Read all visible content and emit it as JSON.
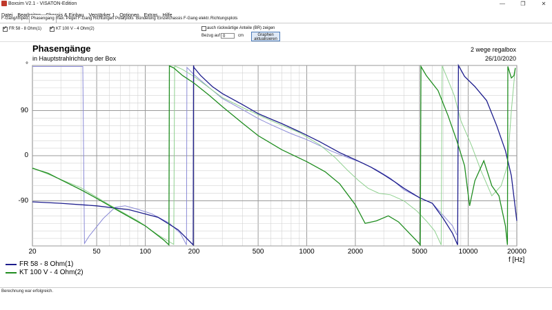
{
  "window": {
    "title": "Boxsim V2.1 - VISATON-Edition",
    "min": "—",
    "max": "❐",
    "close": "✕"
  },
  "menu": [
    "Datei",
    "Bearbeiten",
    "Chassis & Einbau",
    "Verstärker 1",
    "Optionen",
    "Extras",
    "Hilfe"
  ],
  "tabs": [
    "F-Gang/Imped.",
    "Phasengang",
    "max. Pegel",
    "F-Gang Richtungen",
    "Polarplots",
    "Bündelung",
    "Einzelchassis",
    "F-Gang elektr.",
    "Richtungsplots"
  ],
  "active_tab": "Phasengang",
  "toolbar": {
    "series1_label": "FR 58 - 8 Ohm(1)",
    "series2_label": "KT 100 V - 4 Ohm(2)",
    "rear_label": "auch rückwärtige Anteile (BR) zeigen",
    "bezug_label": "Bezug auf",
    "bezug_value": "0",
    "bezug_unit": "cm",
    "graph_btn_line1": "Graphen",
    "graph_btn_line2": "aktualisieren"
  },
  "plot": {
    "title": "Phasengänge",
    "subtitle": "in Hauptstrahlrichtung der Box",
    "right1": "2 wege regalbox",
    "right2": "26/10/2020"
  },
  "status": "Berechnung war erfolgreich.",
  "colors": {
    "blue": "#1c1c8c",
    "blue_light": "#8a8ad6",
    "green": "#1e8c1e",
    "green_light": "#8ed08e"
  },
  "chart_data": {
    "type": "line",
    "xscale": "log",
    "xlim": [
      20,
      20000
    ],
    "ylim": [
      -180,
      180
    ],
    "xlabel": "f [Hz]",
    "x_ticks": [
      20,
      50,
      100,
      200,
      500,
      1000,
      2000,
      5000,
      10000,
      20000
    ],
    "y_ticks": [
      {
        "value": 180,
        "label": "°"
      },
      {
        "value": 90,
        "label": "90"
      },
      {
        "value": 0,
        "label": "0"
      },
      {
        "value": -90,
        "label": "-90"
      }
    ],
    "grid": true,
    "legend_position": "bottom-left",
    "series": [
      {
        "name": "FR 58 - 8 Ohm(1)",
        "color": "#1c1c8c",
        "points": [
          [
            20,
            -92
          ],
          [
            30,
            -95
          ],
          [
            50,
            -100
          ],
          [
            80,
            -108
          ],
          [
            120,
            -123
          ],
          [
            160,
            -148
          ],
          [
            198,
            -178
          ],
          [
            199,
            180
          ],
          [
            200,
            176
          ],
          [
            220,
            160
          ],
          [
            260,
            138
          ],
          [
            300,
            124
          ],
          [
            400,
            102
          ],
          [
            500,
            84
          ],
          [
            600,
            73
          ],
          [
            700,
            64
          ],
          [
            900,
            48
          ],
          [
            1200,
            28
          ],
          [
            1600,
            6
          ],
          [
            2000,
            -8
          ],
          [
            2500,
            -23
          ],
          [
            3000,
            -38
          ],
          [
            3500,
            -52
          ],
          [
            4000,
            -65
          ],
          [
            5000,
            -84
          ],
          [
            6000,
            -95
          ],
          [
            7000,
            -125
          ],
          [
            8000,
            -155
          ],
          [
            8600,
            -178
          ],
          [
            8700,
            180
          ],
          [
            9500,
            158
          ],
          [
            11000,
            138
          ],
          [
            13000,
            110
          ],
          [
            15000,
            60
          ],
          [
            17000,
            10
          ],
          [
            18500,
            -40
          ],
          [
            20000,
            -130
          ]
        ]
      },
      {
        "name": "FR 58 - 8 Ohm(1)",
        "color": "#8a8ad6",
        "points": [
          [
            20,
            178
          ],
          [
            41,
            178
          ],
          [
            42,
            -175
          ],
          [
            45,
            -160
          ],
          [
            55,
            -125
          ],
          [
            65,
            -103
          ],
          [
            75,
            -100
          ],
          [
            90,
            -107
          ],
          [
            110,
            -116
          ],
          [
            140,
            -134
          ],
          [
            165,
            -155
          ],
          [
            180,
            -178
          ],
          [
            181,
            176
          ],
          [
            200,
            162
          ],
          [
            240,
            140
          ],
          [
            300,
            114
          ],
          [
            400,
            92
          ],
          [
            500,
            74
          ],
          [
            600,
            62
          ],
          [
            800,
            44
          ],
          [
            1000,
            32
          ],
          [
            1400,
            10
          ],
          [
            1800,
            -4
          ],
          [
            2200,
            -14
          ],
          [
            2700,
            -28
          ],
          [
            3300,
            -45
          ],
          [
            4000,
            -68
          ],
          [
            5000,
            -84
          ],
          [
            6000,
            -95
          ],
          [
            8000,
            -140
          ],
          [
            8500,
            -158
          ]
        ]
      },
      {
        "name": "KT 100 V - 4 Ohm(2)",
        "color": "#1e8c1e",
        "points": [
          [
            20,
            -25
          ],
          [
            25,
            -35
          ],
          [
            30,
            -48
          ],
          [
            40,
            -68
          ],
          [
            50,
            -85
          ],
          [
            70,
            -112
          ],
          [
            100,
            -140
          ],
          [
            130,
            -168
          ],
          [
            140,
            -178
          ],
          [
            141,
            179
          ],
          [
            150,
            175
          ],
          [
            170,
            160
          ],
          [
            200,
            145
          ],
          [
            250,
            120
          ],
          [
            300,
            98
          ],
          [
            400,
            65
          ],
          [
            500,
            40
          ],
          [
            700,
            12
          ],
          [
            1000,
            -12
          ],
          [
            1300,
            -32
          ],
          [
            1600,
            -56
          ],
          [
            2000,
            -98
          ],
          [
            2300,
            -135
          ],
          [
            2700,
            -130
          ],
          [
            3200,
            -120
          ],
          [
            3700,
            -132
          ],
          [
            4300,
            -154
          ],
          [
            4900,
            -173
          ],
          [
            5050,
            -178
          ],
          [
            5100,
            178
          ],
          [
            5500,
            160
          ],
          [
            6500,
            130
          ],
          [
            7500,
            80
          ],
          [
            8500,
            30
          ],
          [
            9500,
            -20
          ],
          [
            10200,
            -100
          ],
          [
            11000,
            -50
          ],
          [
            12500,
            -10
          ],
          [
            14000,
            -60
          ],
          [
            15500,
            -80
          ],
          [
            17000,
            -140
          ],
          [
            17500,
            -178
          ],
          [
            17600,
            178
          ],
          [
            18500,
            155
          ],
          [
            19200,
            160
          ],
          [
            19600,
            175
          ]
        ]
      },
      {
        "name": "KT 100 V - 4 Ohm(2)",
        "color": "#8ed08e",
        "points": [
          [
            20,
            -24
          ],
          [
            40,
            -64
          ],
          [
            60,
            -98
          ],
          [
            90,
            -130
          ],
          [
            120,
            -158
          ],
          [
            150,
            -177
          ],
          [
            152,
            179
          ],
          [
            170,
            172
          ],
          [
            200,
            158
          ],
          [
            250,
            135
          ],
          [
            300,
            116
          ],
          [
            400,
            96
          ],
          [
            600,
            70
          ],
          [
            900,
            46
          ],
          [
            1200,
            22
          ],
          [
            1500,
            -4
          ],
          [
            1800,
            -30
          ],
          [
            2100,
            -50
          ],
          [
            2400,
            -65
          ],
          [
            2800,
            -75
          ],
          [
            3300,
            -78
          ],
          [
            4000,
            -90
          ],
          [
            4800,
            -110
          ],
          [
            5500,
            -130
          ],
          [
            6200,
            -150
          ],
          [
            6800,
            -178
          ],
          [
            6900,
            179
          ],
          [
            7300,
            160
          ],
          [
            8200,
            120
          ],
          [
            9000,
            70
          ],
          [
            10500,
            20
          ],
          [
            12000,
            -30
          ],
          [
            14000,
            -80
          ],
          [
            16000,
            -60
          ],
          [
            17500,
            -20
          ],
          [
            18500,
            90
          ],
          [
            19500,
            170
          ]
        ]
      }
    ]
  }
}
